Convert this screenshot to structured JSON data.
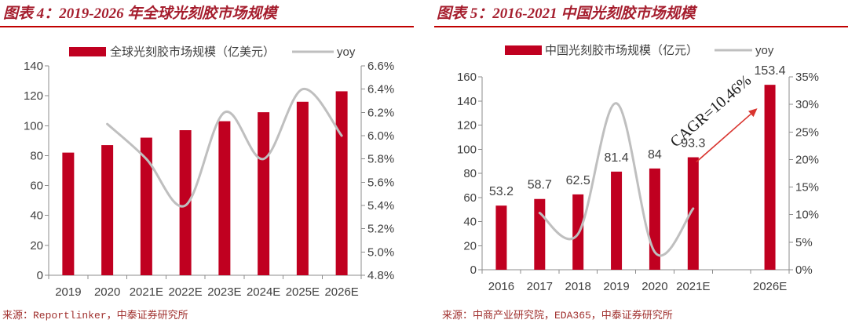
{
  "colors": {
    "bar": "#C00020",
    "yoy_line": "#BFBFBF",
    "title": "#A51D2D",
    "title_rule": "#C00000",
    "axis": "#8C8C8C",
    "tick_text": "#404040",
    "source": "#A0302E",
    "arrow": "#D9352F"
  },
  "chart_data": [
    {
      "type": "bar",
      "title": "图表 4：2019-2026 年全球光刻胶市场规模",
      "source": "来源：Reportlinker，中泰证券研究所",
      "categories": [
        "2019",
        "2020",
        "2021E",
        "2022E",
        "2023E",
        "2024E",
        "2025E",
        "2026E"
      ],
      "series": [
        {
          "name": "全球光刻胶市场规模（亿美元）",
          "type": "bar",
          "values": [
            82,
            87,
            92,
            97,
            103,
            109,
            116,
            123
          ]
        },
        {
          "name": "yoy",
          "type": "line",
          "secondary_axis": true,
          "smooth": true,
          "values": [
            null,
            6.1,
            5.8,
            5.4,
            6.2,
            5.8,
            6.4,
            6.0
          ]
        }
      ],
      "ylim": [
        0,
        140
      ],
      "yticks": [
        0,
        20,
        40,
        60,
        80,
        100,
        120,
        140
      ],
      "y2lim": [
        4.8,
        6.6
      ],
      "y2ticks": [
        "4.8%",
        "5.0%",
        "5.2%",
        "5.4%",
        "5.6%",
        "5.8%",
        "6.0%",
        "6.2%",
        "6.4%",
        "6.6%"
      ],
      "legend": "top",
      "grid": false,
      "data_labels": false
    },
    {
      "type": "bar",
      "title": "图表 5：2016-2021 中国光刻胶市场规模",
      "source": "来源：中商产业研究院，EDA365，中泰证券研究所",
      "categories": [
        "2016",
        "2017",
        "2018",
        "2019",
        "2020",
        "2021E",
        "",
        "2026E"
      ],
      "series": [
        {
          "name": "中国光刻胶市场规模（亿元）",
          "type": "bar",
          "values": [
            53.2,
            58.7,
            62.5,
            81.4,
            84,
            93.3,
            null,
            153.4
          ]
        },
        {
          "name": "yoy",
          "type": "line",
          "secondary_axis": true,
          "smooth": true,
          "values": [
            null,
            10.3,
            6.5,
            30.2,
            3.2,
            11.1,
            null,
            null
          ]
        }
      ],
      "ylim": [
        0,
        160
      ],
      "yticks": [
        0,
        20,
        40,
        60,
        80,
        100,
        120,
        140,
        160
      ],
      "y2lim": [
        0,
        35
      ],
      "y2ticks": [
        "0%",
        "5%",
        "10%",
        "15%",
        "20%",
        "25%",
        "30%",
        "35%"
      ],
      "legend": "top",
      "grid": false,
      "data_labels": true,
      "annotations": [
        {
          "text": "CAGR=10.46%"
        }
      ]
    }
  ]
}
